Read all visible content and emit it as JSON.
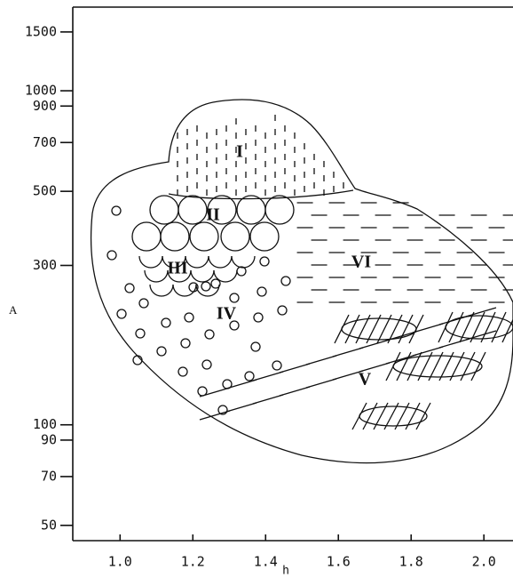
{
  "chart_data": {
    "type": "regime",
    "x_label": "h",
    "y_label": "A",
    "log_scale": "y",
    "xlim": [
      0.87,
      2.08
    ],
    "xticks": [
      {
        "value": 1,
        "label": "1.0"
      },
      {
        "value": 1.2,
        "label": "1.2"
      },
      {
        "value": 1.4,
        "label": "1.4"
      },
      {
        "value": 1.6,
        "label": "1.6"
      },
      {
        "value": 1.8,
        "label": "1.8"
      },
      {
        "value": 2,
        "label": "2.0"
      }
    ],
    "ylim": [
      45,
      1780
    ],
    "yticks": [
      50,
      70,
      90,
      100,
      300,
      500,
      700,
      900,
      1000,
      1500
    ],
    "regions": [
      "I",
      "II",
      "III",
      "IV",
      "V",
      "VI"
    ]
  }
}
